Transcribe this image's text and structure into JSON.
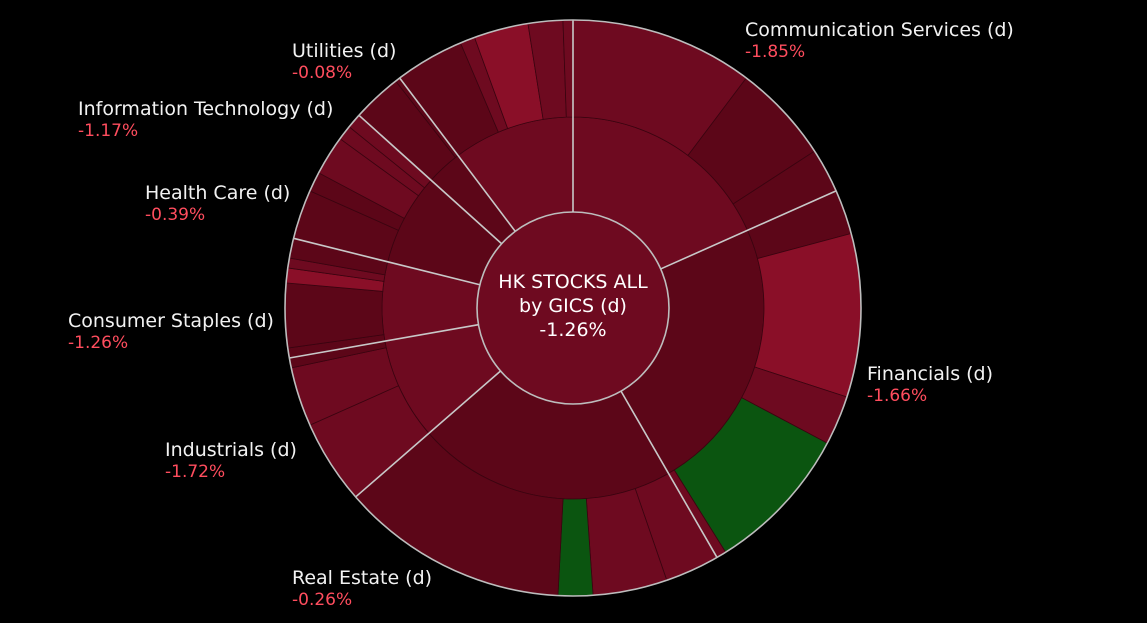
{
  "chart_data": {
    "type": "sunburst",
    "title": "HK STOCKS ALL",
    "subtitle": "by GICS (d)",
    "total_change": "-1.26%",
    "colors": {
      "negative_dark": "#5c0618",
      "negative": "#6e0a20",
      "negative_bright": "#8a0f28",
      "positive": "#0b5510"
    },
    "sectors": [
      {
        "name": "Communication Services (d)",
        "change": "-1.85%"
      },
      {
        "name": "Financials (d)",
        "change": "-1.66%"
      },
      {
        "name": "Real Estate (d)",
        "change": "-0.26%"
      },
      {
        "name": "Industrials (d)",
        "change": "-1.72%"
      },
      {
        "name": "Consumer Staples (d)",
        "change": "-1.26%"
      },
      {
        "name": "Health Care (d)",
        "change": "-0.39%"
      },
      {
        "name": "Information Technology (d)",
        "change": "-1.17%"
      },
      {
        "name": "Utilities (d)",
        "change": "-0.08%"
      }
    ]
  }
}
